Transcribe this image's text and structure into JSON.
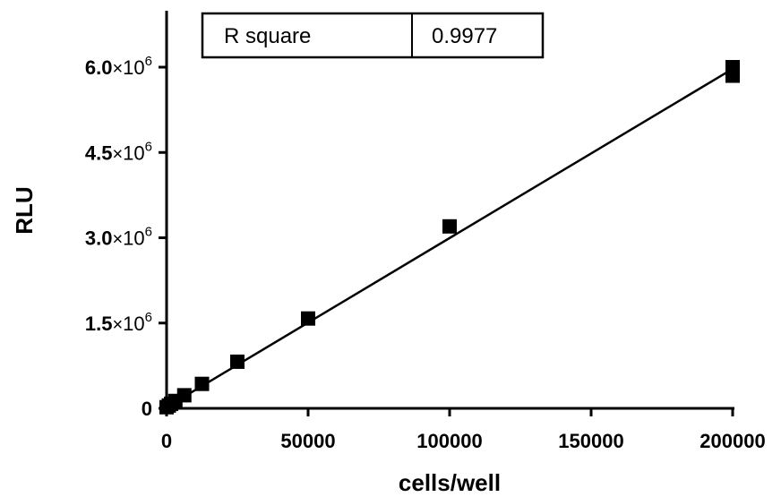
{
  "chart_data": {
    "type": "scatter",
    "xlabel": "cells/well",
    "ylabel": "RLU",
    "xlim": [
      0,
      200000
    ],
    "ylim": [
      0,
      6900000
    ],
    "x_ticks": [
      0,
      50000,
      100000,
      150000,
      200000
    ],
    "x_tick_labels": [
      "0",
      "50000",
      "100000",
      "150000",
      "200000"
    ],
    "y_ticks": [
      0,
      1500000,
      3000000,
      4500000,
      6000000
    ],
    "y_tick_labels": [
      {
        "mantissa": "0",
        "times": "",
        "base": "",
        "exp": ""
      },
      {
        "mantissa": "1.5",
        "times": "×",
        "base": "10",
        "exp": "6"
      },
      {
        "mantissa": "3.0",
        "times": "×",
        "base": "10",
        "exp": "6"
      },
      {
        "mantissa": "4.5",
        "times": "×",
        "base": "10",
        "exp": "6"
      },
      {
        "mantissa": "6.0",
        "times": "×",
        "base": "10",
        "exp": "6"
      }
    ],
    "grid": false,
    "points": [
      {
        "x": 0,
        "y": 20000
      },
      {
        "x": 800,
        "y": 50000
      },
      {
        "x": 1600,
        "y": 80000
      },
      {
        "x": 3100,
        "y": 130000
      },
      {
        "x": 6250,
        "y": 230000
      },
      {
        "x": 12500,
        "y": 430000
      },
      {
        "x": 25000,
        "y": 820000
      },
      {
        "x": 50000,
        "y": 1580000
      },
      {
        "x": 100000,
        "y": 3200000
      },
      {
        "x": 200000,
        "y": 5850000
      },
      {
        "x": 200000,
        "y": 6000000
      }
    ],
    "fit_line": {
      "x": [
        0,
        200000
      ],
      "y": [
        20000,
        5970000
      ]
    },
    "annotation": {
      "label": "R square",
      "value": "0.9977"
    }
  }
}
